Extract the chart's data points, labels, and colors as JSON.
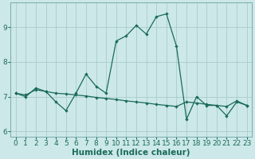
{
  "xlabel": "Humidex (Indice chaleur)",
  "bg_color": "#cce8e8",
  "grid_color": "#aacccc",
  "line_color": "#1a6b5a",
  "x_values": [
    0,
    1,
    2,
    3,
    4,
    5,
    6,
    7,
    8,
    9,
    10,
    11,
    12,
    13,
    14,
    15,
    16,
    17,
    18,
    19,
    20,
    21,
    22,
    23
  ],
  "y1_values": [
    7.1,
    7.0,
    7.25,
    7.15,
    6.85,
    6.6,
    7.1,
    7.65,
    7.3,
    7.1,
    8.6,
    8.75,
    9.05,
    8.8,
    9.3,
    9.38,
    8.45,
    6.35,
    7.0,
    6.75,
    6.75,
    6.45,
    6.85,
    6.75
  ],
  "y2_values": [
    7.1,
    7.05,
    7.2,
    7.15,
    7.1,
    7.08,
    7.05,
    7.02,
    6.98,
    6.95,
    6.92,
    6.88,
    6.85,
    6.82,
    6.78,
    6.75,
    6.72,
    6.85,
    6.82,
    6.78,
    6.75,
    6.72,
    6.88,
    6.75
  ],
  "ylim": [
    5.85,
    9.7
  ],
  "xlim": [
    -0.5,
    23.5
  ],
  "yticks": [
    6,
    7,
    8,
    9
  ],
  "xticks": [
    0,
    1,
    2,
    3,
    4,
    5,
    6,
    7,
    8,
    9,
    10,
    11,
    12,
    13,
    14,
    15,
    16,
    17,
    18,
    19,
    20,
    21,
    22,
    23
  ],
  "tick_fontsize": 6.5,
  "xlabel_fontsize": 7.5
}
